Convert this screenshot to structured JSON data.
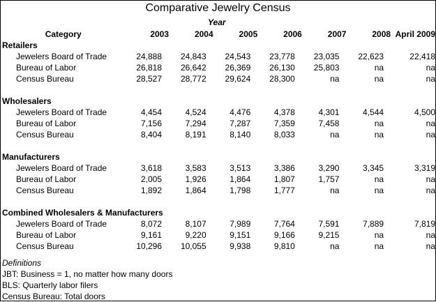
{
  "title": "Comparative Jewelry Census",
  "year_label": "Year",
  "columns": [
    "Category",
    "2003",
    "2004",
    "2005",
    "2006",
    "2007",
    "2008",
    "April 2009"
  ],
  "sections": [
    {
      "name": "Retailers",
      "rows": [
        {
          "label": "Jewelers Board of Trade",
          "values": [
            "24,888",
            "24,843",
            "24,543",
            "23,778",
            "23,035",
            "22,623",
            "22,418"
          ]
        },
        {
          "label": "Bureau of Labor",
          "values": [
            "26,818",
            "26,642",
            "26,369",
            "26,130",
            "25,803",
            "na",
            "na"
          ]
        },
        {
          "label": "Census Bureau",
          "values": [
            "28,527",
            "28,772",
            "29,624",
            "28,300",
            "na",
            "na",
            "na"
          ]
        }
      ]
    },
    {
      "name": "Wholesalers",
      "rows": [
        {
          "label": "Jewelers Board of Trade",
          "values": [
            "4,454",
            "4,524",
            "4,476",
            "4,378",
            "4,301",
            "4,544",
            "4,500"
          ]
        },
        {
          "label": "Bureau of Labor",
          "values": [
            "7,156",
            "7,294",
            "7,287",
            "7,359",
            "7,458",
            "na",
            "na"
          ]
        },
        {
          "label": "Census Bureau",
          "values": [
            "8,404",
            "8,191",
            "8,140",
            "8,033",
            "na",
            "na",
            "na"
          ]
        }
      ]
    },
    {
      "name": "Manufacturers",
      "rows": [
        {
          "label": "Jewelers Board of Trade",
          "values": [
            "3,618",
            "3,583",
            "3,513",
            "3,386",
            "3,290",
            "3,345",
            "3,319"
          ]
        },
        {
          "label": "Bureau of Labor",
          "values": [
            "2,005",
            "1,926",
            "1,864",
            "1,807",
            "1,757",
            "na",
            "na"
          ]
        },
        {
          "label": "Census Bureau",
          "values": [
            "1,892",
            "1,864",
            "1,798",
            "1,777",
            "na",
            "na",
            "na"
          ]
        }
      ]
    },
    {
      "name": "Combined Wholesalers & Manufacturers",
      "rows": [
        {
          "label": "Jewelers Board of Trade",
          "values": [
            "8,072",
            "8,107",
            "7,989",
            "7,764",
            "7,591",
            "7,889",
            "7,819"
          ]
        },
        {
          "label": "Bureau of Labor",
          "values": [
            "9,161",
            "9,220",
            "9,151",
            "9,166",
            "9,215",
            "na",
            "na"
          ]
        },
        {
          "label": "Census Bureau",
          "values": [
            "10,296",
            "10,055",
            "9,938",
            "9,810",
            "na",
            "na",
            "na"
          ]
        }
      ]
    }
  ],
  "definitions": {
    "title": "Definitions",
    "lines": [
      "JBT:  Business = 1, no matter how many doors",
      "BLS:  Quarterly labor filers",
      "Census Bureau:  Total doors"
    ]
  }
}
